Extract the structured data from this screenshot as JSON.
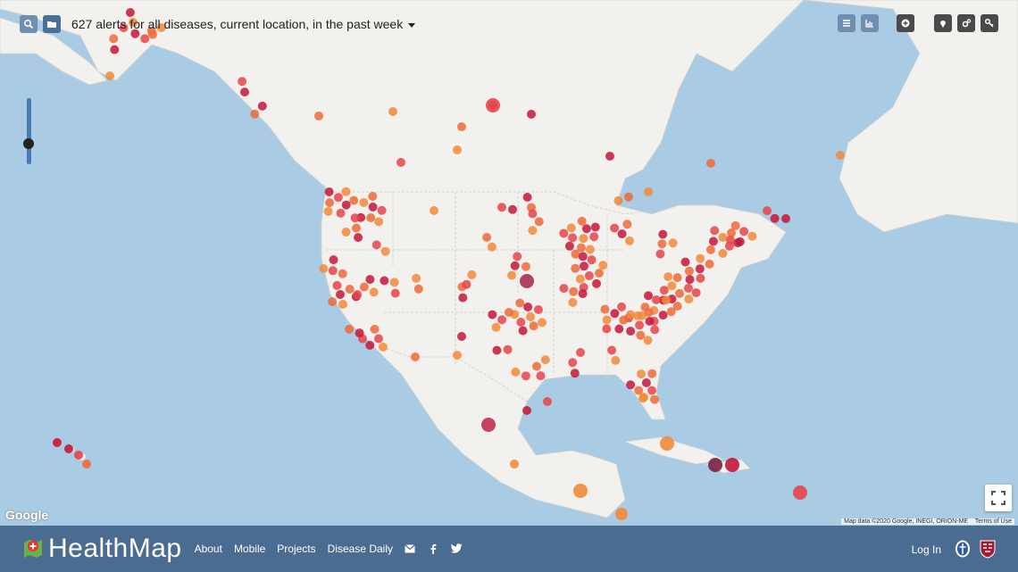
{
  "header": {
    "alert_summary": "627 alerts for all diseases, current location, in the past week"
  },
  "toolbar_left": [
    {
      "icon": "search-icon"
    },
    {
      "icon": "folder-icon"
    }
  ],
  "toolbar_right": [
    {
      "icon": "list-icon"
    },
    {
      "icon": "chart-icon"
    },
    {
      "icon": "plus-circle-icon"
    },
    {
      "icon": "location-pin-icon"
    },
    {
      "icon": "settings-icon"
    },
    {
      "icon": "key-icon"
    }
  ],
  "map": {
    "google_label": "Google",
    "attribution": "Map data ©2020 Google, INEGI, ORION-ME",
    "terms": "Terms of Use",
    "zoom_level": 0.27
  },
  "footer": {
    "brand": "HealthMap",
    "nav": [
      "About",
      "Mobile",
      "Projects",
      "Disease Daily"
    ],
    "social_icons": [
      "mail-icon",
      "facebook-icon",
      "twitter-icon"
    ],
    "login": "Log In"
  },
  "colors": {
    "footer_bg": "#4b6c91",
    "alert_orange": "#f28a3a",
    "alert_red": "#e8444a",
    "alert_crimson": "#c4163a",
    "alert_dark": "#7a2040"
  }
}
